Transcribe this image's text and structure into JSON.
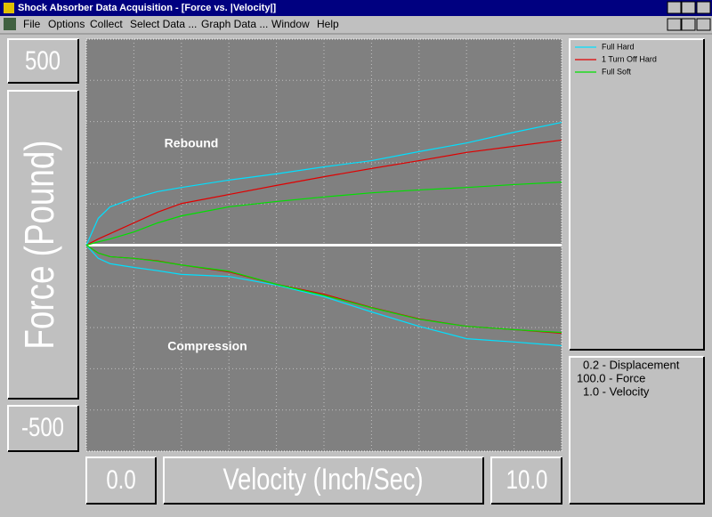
{
  "window": {
    "title": "Shock Absorber Data Acquisition - [Force vs. |Velocity|]"
  },
  "menu": [
    "File",
    "Options",
    "Collect",
    "Select Data ...",
    "Graph Data ...",
    "Window",
    "Help"
  ],
  "info": [
    "0.2 - Displacement",
    "100.0 - Force",
    "1.0 - Velocity"
  ],
  "chart_data": {
    "type": "line",
    "ylabel": "Force (Pound)",
    "xlabel": "Velocity (Inch/Sec)",
    "annotations": [
      "Rebound",
      "Compression"
    ],
    "xlim": [
      0,
      10
    ],
    "ylim": [
      -500,
      500
    ],
    "xticks": [
      {
        "value": 0,
        "label": "0.0"
      },
      {
        "value": 10,
        "label": "10.0"
      }
    ],
    "yticks": [
      500,
      -500
    ],
    "grid": true,
    "xgrid": [
      1,
      2,
      3,
      4,
      5,
      6,
      7,
      8,
      9
    ],
    "ygrid": [
      -400,
      -300,
      -200,
      -100,
      100,
      200,
      300,
      400
    ],
    "x": [
      0,
      0.25,
      0.5,
      1,
      1.5,
      2,
      3,
      4,
      5,
      6,
      7,
      8,
      9,
      10
    ],
    "series": [
      {
        "name": "Full Hard",
        "color": "#00e0ff",
        "rebound": [
          0,
          65,
          93,
          114,
          130,
          140,
          158,
          173,
          190,
          205,
          227,
          248,
          274,
          298
        ],
        "compression": [
          0,
          -32,
          -45,
          -54,
          -62,
          -71,
          -76,
          -97,
          -125,
          -162,
          -197,
          -227,
          -235,
          -244
        ]
      },
      {
        "name": "1 Turn Off Hard",
        "color": "#e00000",
        "rebound": [
          0,
          15,
          28,
          54,
          80,
          101,
          123,
          145,
          166,
          186,
          205,
          225,
          240,
          255
        ],
        "compression": [
          0,
          -19,
          -28,
          -32,
          -38,
          -48,
          -65,
          -95,
          -119,
          -151,
          -179,
          -197,
          -205,
          -214
        ]
      },
      {
        "name": "Full Soft",
        "color": "#00e000",
        "rebound": [
          0,
          8,
          15,
          32,
          54,
          71,
          93,
          106,
          117,
          127,
          134,
          140,
          147,
          153
        ],
        "compression": [
          0,
          -19,
          -28,
          -32,
          -39,
          -48,
          -63,
          -95,
          -122,
          -152,
          -180,
          -197,
          -205,
          -212
        ]
      }
    ]
  }
}
